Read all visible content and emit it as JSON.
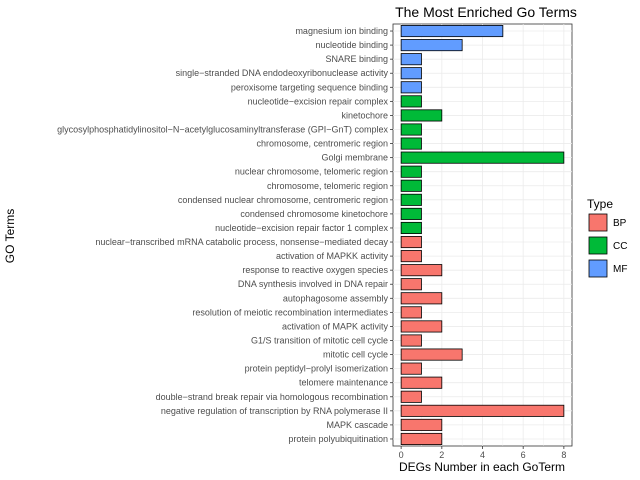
{
  "chart_data": {
    "type": "bar",
    "orientation": "horizontal",
    "title": "The Most Enriched Go Terms",
    "xlabel": "DEGs Number in each GoTerm",
    "ylabel": "GO Terms",
    "xlim": [
      -0.4,
      8.4
    ],
    "x_ticks": [
      0,
      2,
      4,
      6,
      8
    ],
    "grid": true,
    "legend": {
      "title": "Type",
      "placement": "right",
      "items": [
        {
          "name": "BP",
          "color": "#F8766D"
        },
        {
          "name": "CC",
          "color": "#00BA38"
        },
        {
          "name": "MF",
          "color": "#619CFF"
        }
      ]
    },
    "categories": [
      {
        "label": "magnesium ion binding",
        "value": 5,
        "type": "MF"
      },
      {
        "label": "nucleotide binding",
        "value": 3,
        "type": "MF"
      },
      {
        "label": "SNARE binding",
        "value": 1,
        "type": "MF"
      },
      {
        "label": "single−stranded DNA endodeoxyribonuclease activity",
        "value": 1,
        "type": "MF"
      },
      {
        "label": "peroxisome targeting sequence binding",
        "value": 1,
        "type": "MF"
      },
      {
        "label": "nucleotide−excision repair complex",
        "value": 1,
        "type": "CC"
      },
      {
        "label": "kinetochore",
        "value": 2,
        "type": "CC"
      },
      {
        "label": "glycosylphosphatidylinositol−N−acetylglucosaminyltransferase (GPI−GnT) complex",
        "value": 1,
        "type": "CC"
      },
      {
        "label": "chromosome, centromeric region",
        "value": 1,
        "type": "CC"
      },
      {
        "label": "Golgi membrane",
        "value": 8,
        "type": "CC"
      },
      {
        "label": "nuclear chromosome, telomeric region",
        "value": 1,
        "type": "CC"
      },
      {
        "label": "chromosome, telomeric region",
        "value": 1,
        "type": "CC"
      },
      {
        "label": "condensed nuclear chromosome, centromeric region",
        "value": 1,
        "type": "CC"
      },
      {
        "label": "condensed chromosome kinetochore",
        "value": 1,
        "type": "CC"
      },
      {
        "label": "nucleotide−excision repair factor 1 complex",
        "value": 1,
        "type": "CC"
      },
      {
        "label": "nuclear−transcribed mRNA catabolic process, nonsense−mediated decay",
        "value": 1,
        "type": "BP"
      },
      {
        "label": "activation of MAPKK activity",
        "value": 1,
        "type": "BP"
      },
      {
        "label": "response to reactive oxygen species",
        "value": 2,
        "type": "BP"
      },
      {
        "label": "DNA synthesis involved in DNA repair",
        "value": 1,
        "type": "BP"
      },
      {
        "label": "autophagosome assembly",
        "value": 2,
        "type": "BP"
      },
      {
        "label": "resolution of meiotic recombination intermediates",
        "value": 1,
        "type": "BP"
      },
      {
        "label": "activation of MAPK activity",
        "value": 2,
        "type": "BP"
      },
      {
        "label": "G1/S transition of mitotic cell cycle",
        "value": 1,
        "type": "BP"
      },
      {
        "label": "mitotic cell cycle",
        "value": 3,
        "type": "BP"
      },
      {
        "label": "protein peptidyl−prolyl isomerization",
        "value": 1,
        "type": "BP"
      },
      {
        "label": "telomere maintenance",
        "value": 2,
        "type": "BP"
      },
      {
        "label": "double−strand break repair via homologous recombination",
        "value": 1,
        "type": "BP"
      },
      {
        "label": "negative regulation of transcription by RNA polymerase II",
        "value": 8,
        "type": "BP"
      },
      {
        "label": "MAPK cascade",
        "value": 2,
        "type": "BP"
      },
      {
        "label": "protein polyubiquitination",
        "value": 2,
        "type": "BP"
      }
    ]
  }
}
